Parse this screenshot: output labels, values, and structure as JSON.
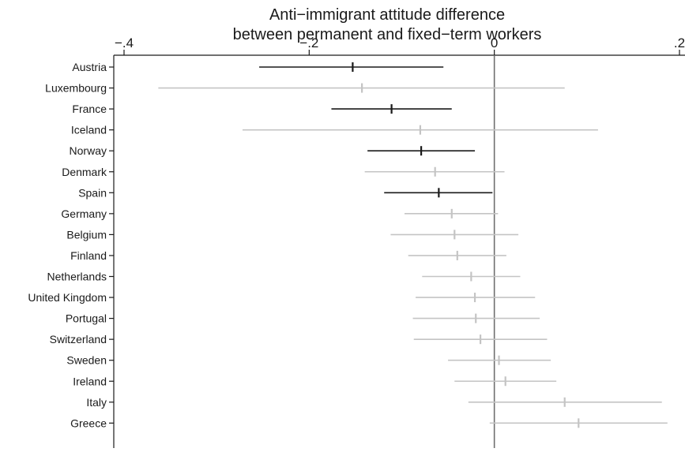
{
  "chart_data": {
    "type": "forest",
    "title_lines": [
      "Anti−immigrant attitude difference",
      "between permanent and fixed−term workers"
    ],
    "xlim": [
      -0.4,
      0.2
    ],
    "x_ticks": [
      -0.4,
      -0.2,
      0,
      0.2
    ],
    "x_tick_labels": [
      "−.4",
      "−.2",
      "0",
      ".2"
    ],
    "reference_line_x": 0,
    "colors": {
      "significant": "#1a1a1a",
      "not_significant": "#c4c4c4",
      "axis": "#1a1a1a"
    },
    "countries": [
      {
        "name": "Austria",
        "estimate": -0.153,
        "ci_low": -0.254,
        "ci_high": -0.055,
        "significant": true
      },
      {
        "name": "Luxembourg",
        "estimate": -0.143,
        "ci_low": -0.363,
        "ci_high": 0.076,
        "significant": false
      },
      {
        "name": "France",
        "estimate": -0.111,
        "ci_low": -0.176,
        "ci_high": -0.046,
        "significant": true
      },
      {
        "name": "Iceland",
        "estimate": -0.08,
        "ci_low": -0.272,
        "ci_high": 0.112,
        "significant": false
      },
      {
        "name": "Norway",
        "estimate": -0.079,
        "ci_low": -0.137,
        "ci_high": -0.021,
        "significant": true
      },
      {
        "name": "Denmark",
        "estimate": -0.064,
        "ci_low": -0.14,
        "ci_high": 0.011,
        "significant": false
      },
      {
        "name": "Spain",
        "estimate": -0.06,
        "ci_low": -0.119,
        "ci_high": -0.002,
        "significant": true
      },
      {
        "name": "Germany",
        "estimate": -0.046,
        "ci_low": -0.097,
        "ci_high": 0.004,
        "significant": false
      },
      {
        "name": "Belgium",
        "estimate": -0.043,
        "ci_low": -0.112,
        "ci_high": 0.026,
        "significant": false
      },
      {
        "name": "Finland",
        "estimate": -0.04,
        "ci_low": -0.093,
        "ci_high": 0.013,
        "significant": false
      },
      {
        "name": "Netherlands",
        "estimate": -0.025,
        "ci_low": -0.078,
        "ci_high": 0.028,
        "significant": false
      },
      {
        "name": "United Kingdom",
        "estimate": -0.021,
        "ci_low": -0.085,
        "ci_high": 0.044,
        "significant": false
      },
      {
        "name": "Portugal",
        "estimate": -0.02,
        "ci_low": -0.088,
        "ci_high": 0.049,
        "significant": false
      },
      {
        "name": "Switzerland",
        "estimate": -0.015,
        "ci_low": -0.087,
        "ci_high": 0.057,
        "significant": false
      },
      {
        "name": "Sweden",
        "estimate": 0.005,
        "ci_low": -0.05,
        "ci_high": 0.061,
        "significant": false
      },
      {
        "name": "Ireland",
        "estimate": 0.012,
        "ci_low": -0.043,
        "ci_high": 0.067,
        "significant": false
      },
      {
        "name": "Italy",
        "estimate": 0.076,
        "ci_low": -0.028,
        "ci_high": 0.181,
        "significant": false
      },
      {
        "name": "Greece",
        "estimate": 0.091,
        "ci_low": -0.005,
        "ci_high": 0.187,
        "significant": false
      }
    ]
  }
}
